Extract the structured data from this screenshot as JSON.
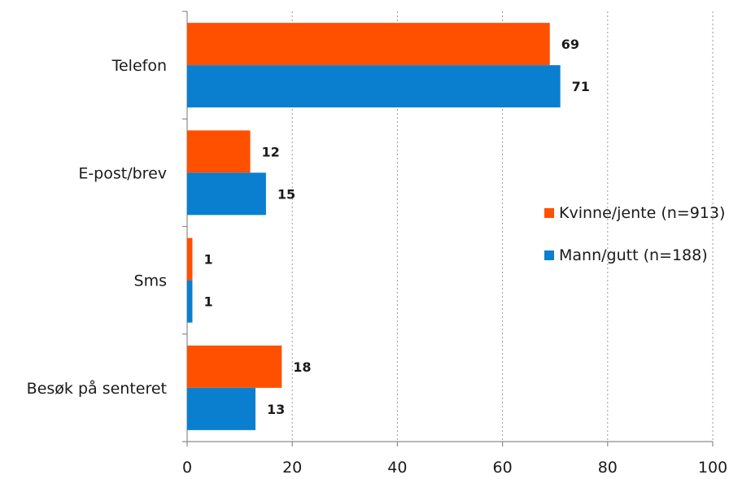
{
  "chart_data": {
    "type": "bar",
    "orientation": "horizontal",
    "categories": [
      "Telefon",
      "E-post/brev",
      "Sms",
      "Besøk på senteret"
    ],
    "series": [
      {
        "name": "Kvinne/jente (n=913)",
        "color": "#ff5000",
        "values": [
          69,
          12,
          1,
          18
        ]
      },
      {
        "name": "Mann/gutt (n=188)",
        "color": "#0a7fcf",
        "values": [
          71,
          15,
          1,
          13
        ]
      }
    ],
    "xlim": [
      0,
      100
    ],
    "xticks": [
      0,
      20,
      40,
      60,
      80,
      100
    ],
    "grid": "vertical dotted",
    "legend_position": "right"
  }
}
